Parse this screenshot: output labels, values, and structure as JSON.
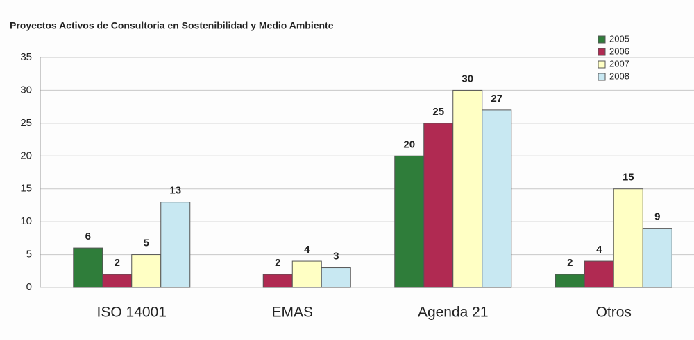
{
  "chart_data": {
    "type": "bar",
    "title": "Proyectos Activos de Consultoria en Sostenibilidad y Medio Ambiente",
    "categories": [
      "ISO 14001",
      "EMAS",
      "Agenda 21",
      "Otros"
    ],
    "series": [
      {
        "name": "2005",
        "color": "#2f7d3a",
        "values": [
          6,
          null,
          20,
          2
        ]
      },
      {
        "name": "2006",
        "color": "#b02a52",
        "values": [
          2,
          2,
          25,
          4
        ]
      },
      {
        "name": "2007",
        "color": "#ffffc4",
        "values": [
          5,
          4,
          30,
          15
        ]
      },
      {
        "name": "2008",
        "color": "#c8e8f2",
        "values": [
          13,
          3,
          27,
          9
        ]
      }
    ],
    "ylim": [
      0,
      35
    ],
    "yticks": [
      0,
      5,
      10,
      15,
      20,
      25,
      30,
      35
    ],
    "grid": true,
    "legend": "top-right"
  }
}
